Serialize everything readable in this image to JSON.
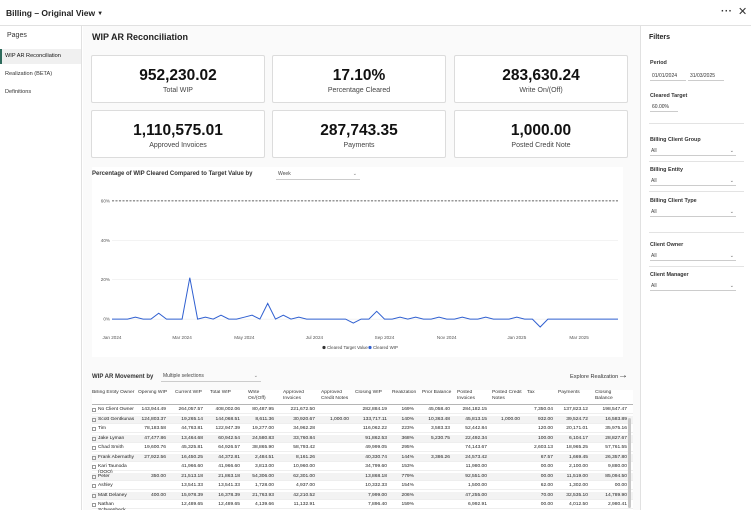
{
  "app": {
    "title": "Billing – Original View",
    "more_icon": "more-horizontal-icon",
    "close_icon": "close-icon"
  },
  "sidebar": {
    "title": "Pages",
    "items": [
      {
        "label": "WIP AR Reconciliation",
        "active": true
      },
      {
        "label": "Realization (BETA)",
        "active": false
      },
      {
        "label": "Definitions",
        "active": false
      }
    ]
  },
  "main": {
    "title": "WIP AR Reconciliation",
    "kpis": [
      {
        "value": "952,230.02",
        "label": "Total WIP"
      },
      {
        "value": "17.10%",
        "label": "Percentage Cleared"
      },
      {
        "value": "283,630.24",
        "label": "Write On/(Off)"
      },
      {
        "value": "1,110,575.01",
        "label": "Approved Invoices"
      },
      {
        "value": "287,743.35",
        "label": "Payments"
      },
      {
        "value": "1,000.00",
        "label": "Posted Credit Note"
      }
    ]
  },
  "chart_section": {
    "title": "Percentage of WIP Cleared Compared to Target Value by",
    "granularity": "Week"
  },
  "chart_data": {
    "type": "line",
    "x_tick_labels": [
      "Jan 2024",
      "Mar 2024",
      "May 2024",
      "Jul 2024",
      "Sep 2024",
      "Nov 2024",
      "Jan 2025",
      "Mar 2025"
    ],
    "y_tick_labels": [
      "60%",
      "40%",
      "20%",
      "0%"
    ],
    "ylim": [
      -5,
      65
    ],
    "series": [
      {
        "name": "Cleared Target Value",
        "color": "#333333",
        "style": "dashed",
        "values": [
          60,
          60,
          60,
          60,
          60,
          60,
          60,
          60,
          60,
          60,
          60,
          60,
          60,
          60,
          60,
          60,
          60,
          60,
          60,
          60,
          60,
          60,
          60,
          60,
          60,
          60,
          60,
          60,
          60,
          60,
          60,
          60,
          60,
          60,
          60,
          60,
          60,
          60,
          60,
          60,
          60,
          60,
          60,
          60,
          60,
          60,
          60,
          60,
          60,
          60,
          60,
          60,
          60,
          60,
          60,
          60,
          60,
          60,
          60,
          60,
          60,
          60,
          60,
          60,
          60,
          60
        ]
      },
      {
        "name": "Cleared WIP",
        "color": "#2f5fd0",
        "style": "solid",
        "values": [
          0,
          0,
          0,
          1,
          0,
          0,
          3,
          0,
          0,
          0,
          21,
          0,
          1,
          0,
          2,
          0,
          0,
          1,
          2,
          0,
          8,
          0,
          2,
          0,
          1,
          0,
          0,
          0,
          0,
          0,
          0,
          -2,
          0,
          0,
          4,
          0,
          0,
          1,
          0,
          1,
          0,
          0,
          1,
          0,
          0,
          1,
          0,
          0,
          1,
          0,
          0,
          0,
          1,
          0,
          0,
          -4,
          0,
          0,
          0,
          0,
          0,
          0,
          0,
          0,
          0,
          0
        ]
      }
    ],
    "grid": true,
    "legend": "bottom-center"
  },
  "movement": {
    "title": "WIP AR Movement by",
    "selection": "Multiple selections",
    "explore_label": "Explore Realization",
    "columns": [
      "Billing Entity Owner",
      "Opening WIP",
      "Current WIP",
      "Total WIP",
      "Write On/(Off)",
      "Approved Invoices",
      "Approved Credit Notes",
      "Closing WIP",
      "Realization",
      "Prior Balance",
      "Posted Invoices",
      "Posted Credit Notes",
      "Tax",
      "Payments",
      "Closing Balance"
    ],
    "rows": [
      [
        "No Client Owner",
        "143,944.49",
        "264,057.57",
        "408,002.06",
        "80,487.95",
        "221,672.50",
        "",
        "282,884.19",
        "169%",
        "45,058.40",
        "284,182.15",
        "",
        "7,350.04",
        "137,823.12",
        "198,547.47"
      ],
      [
        "Scott Gentkunas",
        "124,803.37",
        "19,265.14",
        "144,068.51",
        "8,611.36",
        "30,920.67",
        "1,000.00",
        "133,717.11",
        "140%",
        "10,363.48",
        "45,813.15",
        "1,000.00",
        "932.00",
        "39,524.72",
        "16,583.89"
      ],
      [
        "Tim",
        "78,183.58",
        "44,763.81",
        "122,947.39",
        "19,277.00",
        "34,962.28",
        "",
        "116,062.22",
        "223%",
        "3,583.33",
        "52,442.84",
        "",
        "120.00",
        "20,171.01",
        "35,975.16"
      ],
      [
        "Jake Lyman",
        "47,477.86",
        "13,464.68",
        "60,942.54",
        "24,580.83",
        "33,760.84",
        "",
        "91,862.53",
        "368%",
        "5,230.75",
        "22,492.34",
        "",
        "100.00",
        "6,104.17",
        "28,827.67"
      ],
      [
        "Chad Smith",
        "19,600.76",
        "45,325.81",
        "64,926.57",
        "38,865.90",
        "58,793.42",
        "",
        "49,999.05",
        "295%",
        "",
        "74,143.67",
        "",
        "2,603.13",
        "18,965.25",
        "57,761.55"
      ],
      [
        "Frank Abernathy",
        "27,922.56",
        "16,450.25",
        "44,372.81",
        "2,484.51",
        "8,161.26",
        "",
        "40,330.74",
        "144%",
        "3,386.26",
        "24,573.42",
        "",
        "67.57",
        "1,669.45",
        "26,357.80"
      ],
      [
        "Kari Taunoda (OOO)",
        "",
        "41,966.60",
        "41,966.60",
        "3,813.00",
        "10,960.00",
        "",
        "34,799.60",
        "153%",
        "",
        "11,980.00",
        "",
        "00.00",
        "2,100.00",
        "9,880.00"
      ],
      [
        "Peter",
        "350.00",
        "21,513.18",
        "21,863.18",
        "54,306.00",
        "62,301.00",
        "",
        "13,868.18",
        "779%",
        "",
        "92,551.00",
        "",
        "00.00",
        "11,519.00",
        "85,094.50"
      ],
      [
        "Ashley",
        "",
        "13,541.33",
        "13,541.33",
        "1,728.00",
        "4,937.00",
        "",
        "10,332.33",
        "154%",
        "",
        "1,500.00",
        "",
        "62.00",
        "1,302.00",
        "00.00"
      ],
      [
        "Matt Delaney",
        "400.00",
        "15,978.39",
        "16,378.39",
        "21,763.93",
        "42,210.52",
        "",
        "7,999.00",
        "206%",
        "",
        "47,255.00",
        "",
        "70.00",
        "32,535.10",
        "14,789.90"
      ],
      [
        "Nathan Schwenbeck",
        "",
        "12,489.65",
        "12,489.65",
        "4,139.66",
        "11,132.91",
        "",
        "7,896.40",
        "159%",
        "",
        "6,992.91",
        "",
        "00.00",
        "4,012.50",
        "2,980.41"
      ]
    ]
  },
  "filters": {
    "title": "Filters",
    "period_label": "Period",
    "period_start": "01/01/2024",
    "period_end": "31/03/2025",
    "cleared_target_label": "Cleared Target",
    "cleared_target_value": "60.00%",
    "dropdowns": [
      {
        "label": "Billing Client Group",
        "value": "All"
      },
      {
        "label": "Billing Entity",
        "value": "All"
      },
      {
        "label": "Billing Client Type",
        "value": "All"
      },
      {
        "label": "Client Owner",
        "value": "All"
      },
      {
        "label": "Client Manager",
        "value": "All"
      }
    ]
  }
}
